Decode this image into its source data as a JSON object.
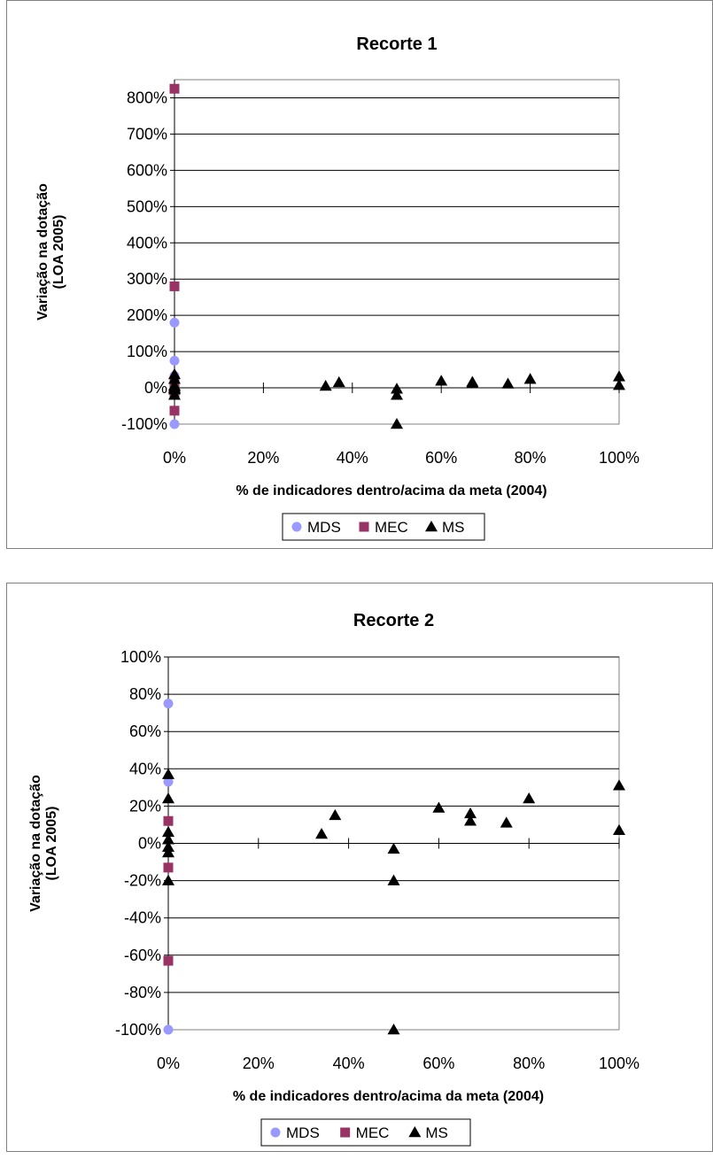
{
  "chart_data": [
    {
      "type": "scatter",
      "title": "Recorte 1",
      "xlabel": "% de indicadores dentro/acima da meta (2004)",
      "ylabel": "Variação na dotação\n(LOA 2005)",
      "xlim": [
        0,
        1
      ],
      "ylim": [
        -1,
        8.5
      ],
      "grid": true,
      "legend_position": "bottom",
      "x_tick_labels": [
        "0%",
        "20%",
        "40%",
        "60%",
        "80%",
        "100%"
      ],
      "y_tick_labels": [
        "-100%",
        "0%",
        "100%",
        "200%",
        "300%",
        "400%",
        "500%",
        "600%",
        "700%",
        "800%"
      ],
      "series": [
        {
          "name": "MDS",
          "color": "#9999ff",
          "marker": "circle",
          "points": [
            [
              0,
              1.8
            ],
            [
              0,
              0.75
            ],
            [
              0,
              0.33
            ],
            [
              0,
              -1.0
            ]
          ]
        },
        {
          "name": "MEC",
          "color": "#993366",
          "marker": "square",
          "points": [
            [
              0,
              8.25
            ],
            [
              0,
              2.8
            ],
            [
              0,
              0.12
            ],
            [
              0,
              -0.13
            ],
            [
              0,
              -0.63
            ]
          ]
        },
        {
          "name": "MS",
          "color": "#000000",
          "marker": "triangle",
          "points": [
            [
              0,
              0.37
            ],
            [
              0,
              0.24
            ],
            [
              0,
              0.06
            ],
            [
              0,
              0.02
            ],
            [
              0,
              -0.02
            ],
            [
              0,
              -0.05
            ],
            [
              0,
              -0.2
            ],
            [
              0.34,
              0.05
            ],
            [
              0.37,
              0.15
            ],
            [
              0.5,
              -0.03
            ],
            [
              0.5,
              -0.2
            ],
            [
              0.5,
              -1.0
            ],
            [
              0.6,
              0.19
            ],
            [
              0.67,
              0.16
            ],
            [
              0.67,
              0.12
            ],
            [
              0.75,
              0.11
            ],
            [
              0.8,
              0.24
            ],
            [
              1.0,
              0.31
            ],
            [
              1.0,
              0.07
            ]
          ]
        }
      ]
    },
    {
      "type": "scatter",
      "title": "Recorte 2",
      "xlabel": "% de indicadores dentro/acima da meta (2004)",
      "ylabel": "Variação na dotação\n(LOA 2005)",
      "xlim": [
        0,
        1
      ],
      "ylim": [
        -1,
        1
      ],
      "grid": true,
      "legend_position": "bottom",
      "x_tick_labels": [
        "0%",
        "20%",
        "40%",
        "60%",
        "80%",
        "100%"
      ],
      "y_tick_labels": [
        "-100%",
        "-80%",
        "-60%",
        "-40%",
        "-20%",
        "0%",
        "20%",
        "40%",
        "60%",
        "80%",
        "100%"
      ],
      "series": [
        {
          "name": "MDS",
          "color": "#9999ff",
          "marker": "circle",
          "points": [
            [
              0,
              0.75
            ],
            [
              0,
              0.33
            ],
            [
              0,
              -1.0
            ]
          ]
        },
        {
          "name": "MEC",
          "color": "#993366",
          "marker": "square",
          "points": [
            [
              0,
              0.12
            ],
            [
              0,
              -0.13
            ],
            [
              0,
              -0.63
            ]
          ]
        },
        {
          "name": "MS",
          "color": "#000000",
          "marker": "triangle",
          "points": [
            [
              0,
              0.37
            ],
            [
              0,
              0.24
            ],
            [
              0,
              0.06
            ],
            [
              0,
              0.02
            ],
            [
              0,
              -0.02
            ],
            [
              0,
              -0.05
            ],
            [
              0,
              -0.2
            ],
            [
              0.34,
              0.05
            ],
            [
              0.37,
              0.15
            ],
            [
              0.5,
              -0.03
            ],
            [
              0.5,
              -0.2
            ],
            [
              0.5,
              -1.0
            ],
            [
              0.6,
              0.19
            ],
            [
              0.67,
              0.16
            ],
            [
              0.67,
              0.12
            ],
            [
              0.75,
              0.11
            ],
            [
              0.8,
              0.24
            ],
            [
              1.0,
              0.31
            ],
            [
              1.0,
              0.07
            ]
          ]
        }
      ]
    }
  ]
}
